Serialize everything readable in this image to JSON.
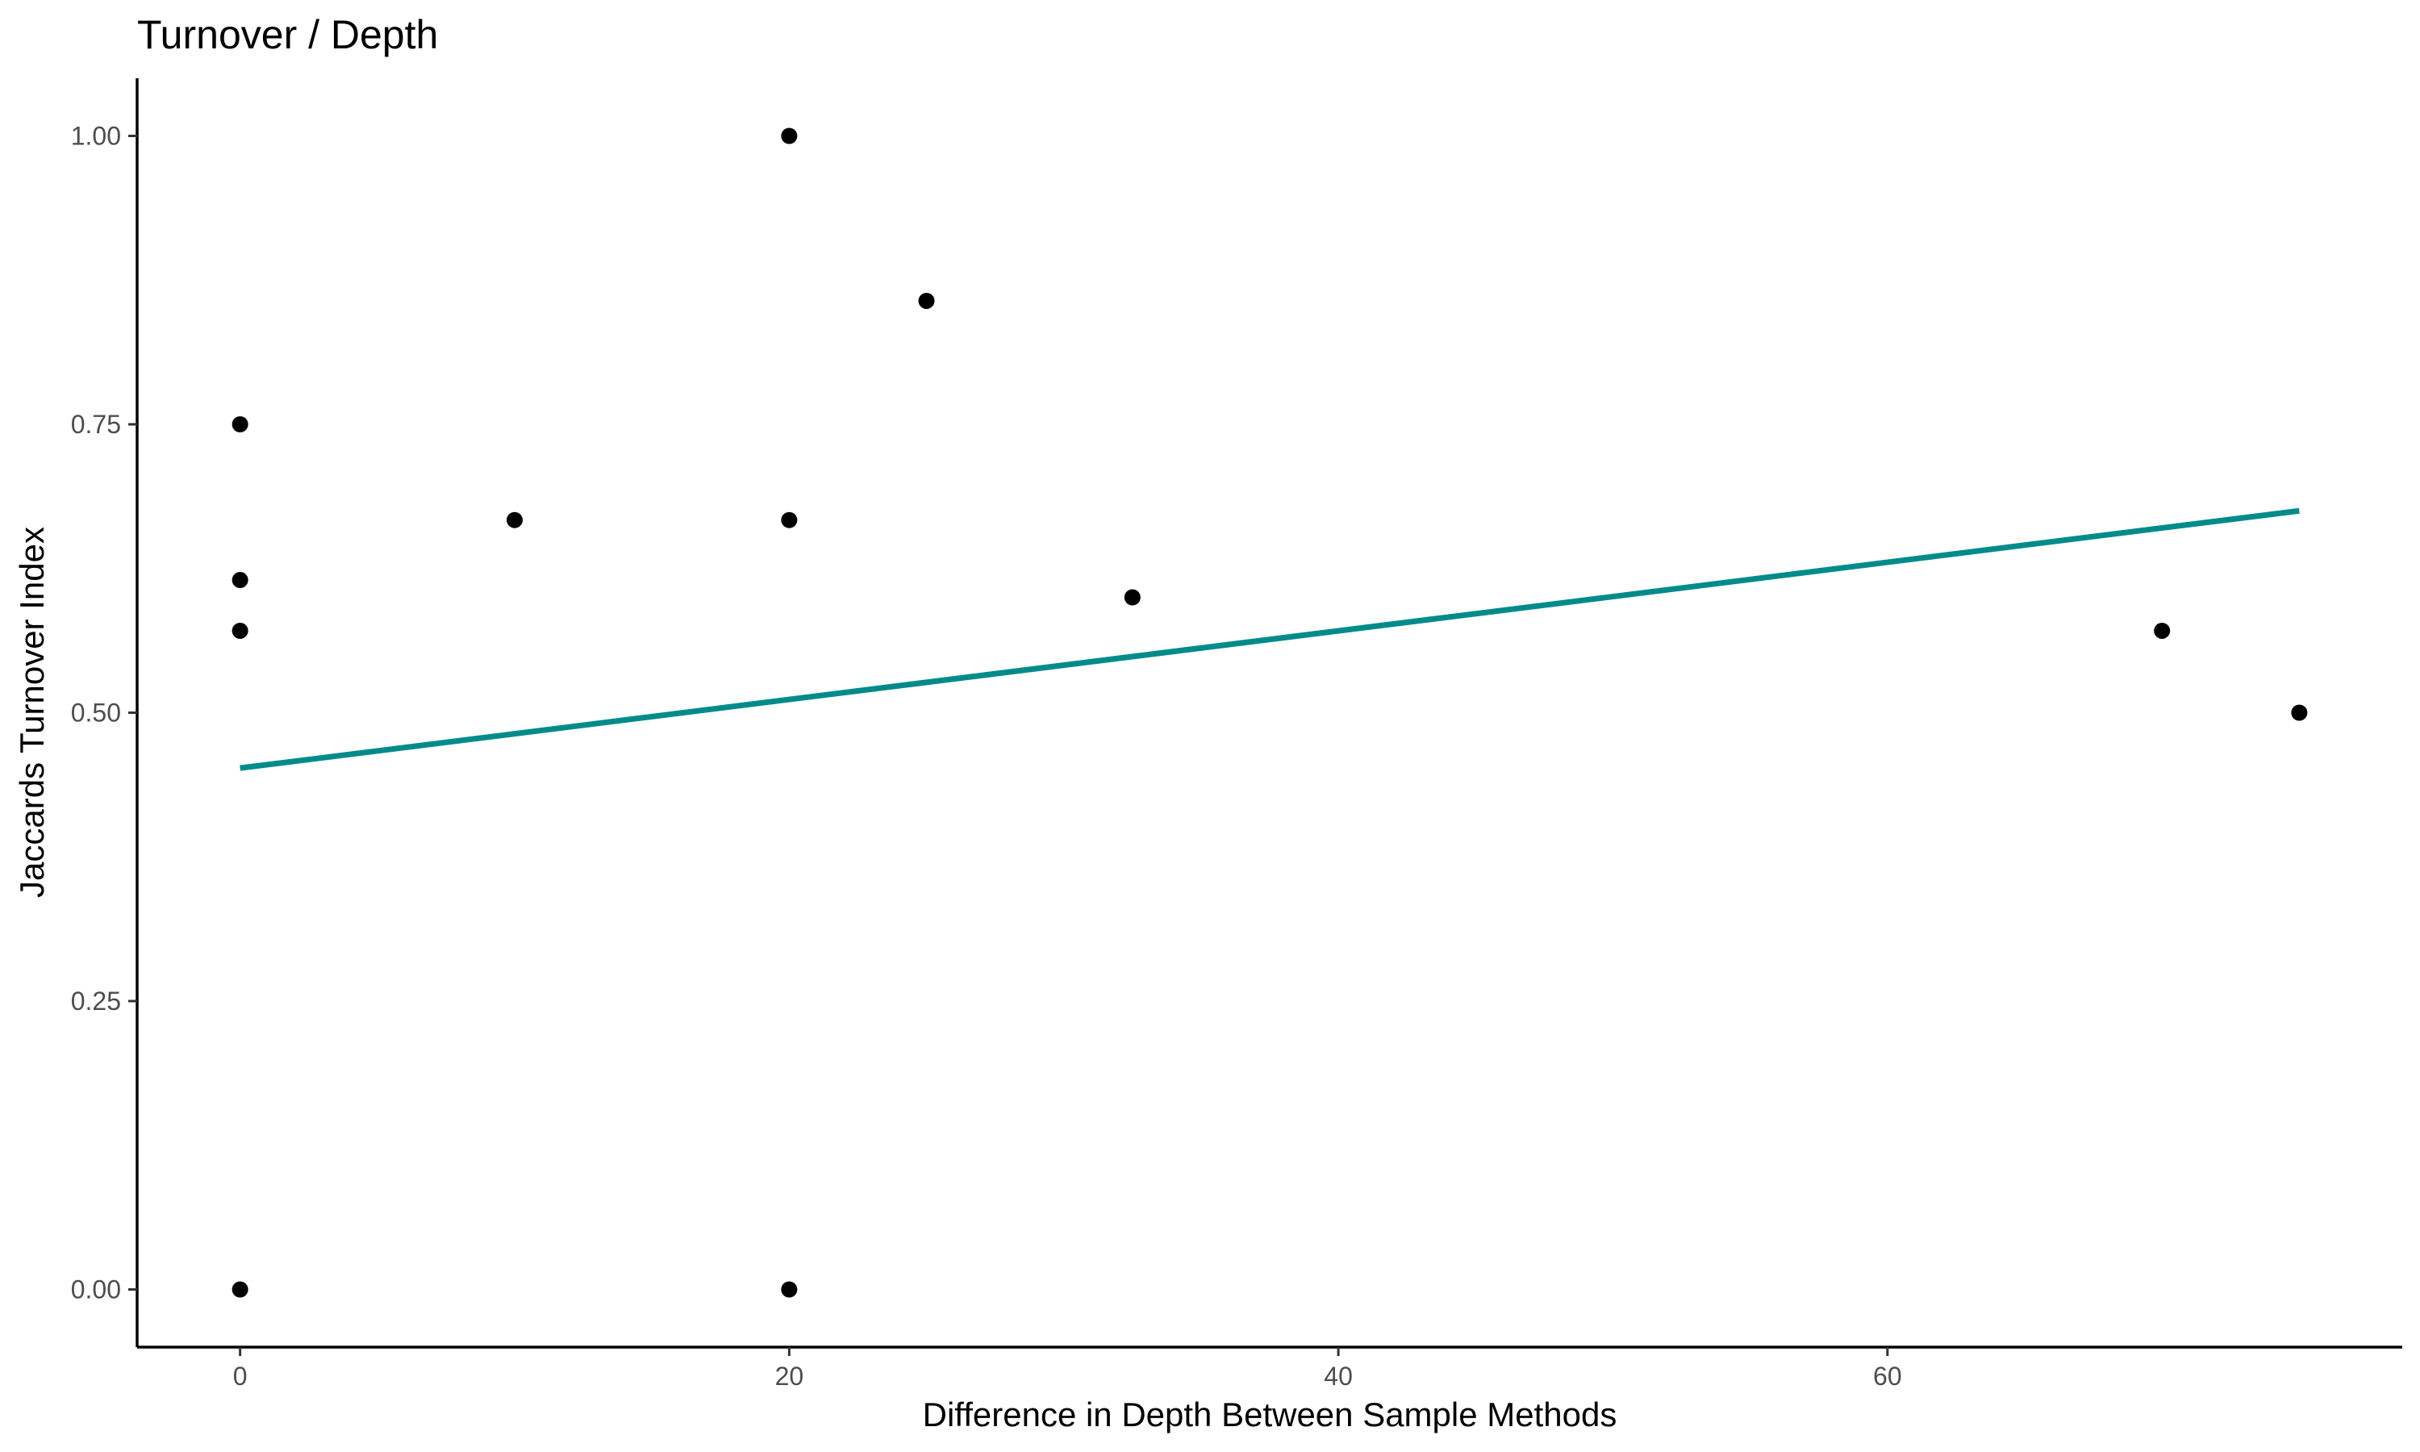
{
  "chart_data": {
    "type": "scatter",
    "title": "Turnover / Depth",
    "xlabel": "Difference in Depth Between Sample Methods",
    "ylabel": "Jaccards Turnover Index",
    "xlim": [
      -3.75,
      78.75
    ],
    "ylim": [
      -0.05,
      1.05
    ],
    "x_ticks": [
      {
        "value": 0,
        "label": "0"
      },
      {
        "value": 20,
        "label": "20"
      },
      {
        "value": 40,
        "label": "40"
      },
      {
        "value": 60,
        "label": "60"
      }
    ],
    "y_ticks": [
      {
        "value": 0,
        "label": "0.00"
      },
      {
        "value": 0.25,
        "label": "0.25"
      },
      {
        "value": 0.5,
        "label": "0.50"
      },
      {
        "value": 0.75,
        "label": "0.75"
      },
      {
        "value": 1,
        "label": "1.00"
      }
    ],
    "points": [
      {
        "x": 0,
        "y": 0.75
      },
      {
        "x": 0,
        "y": 0.615
      },
      {
        "x": 0,
        "y": 0.571
      },
      {
        "x": 0,
        "y": 0.0
      },
      {
        "x": 10,
        "y": 0.667
      },
      {
        "x": 20,
        "y": 1.0
      },
      {
        "x": 20,
        "y": 0.667
      },
      {
        "x": 20,
        "y": 0.0
      },
      {
        "x": 25,
        "y": 0.857
      },
      {
        "x": 32.5,
        "y": 0.6
      },
      {
        "x": 70,
        "y": 0.571
      },
      {
        "x": 75,
        "y": 0.5
      }
    ],
    "trend_line": {
      "x": [
        0,
        75
      ],
      "y": [
        0.452,
        0.675
      ],
      "color": "#008b8b"
    },
    "point_color": "#000000",
    "grid": false,
    "legend": "none"
  }
}
